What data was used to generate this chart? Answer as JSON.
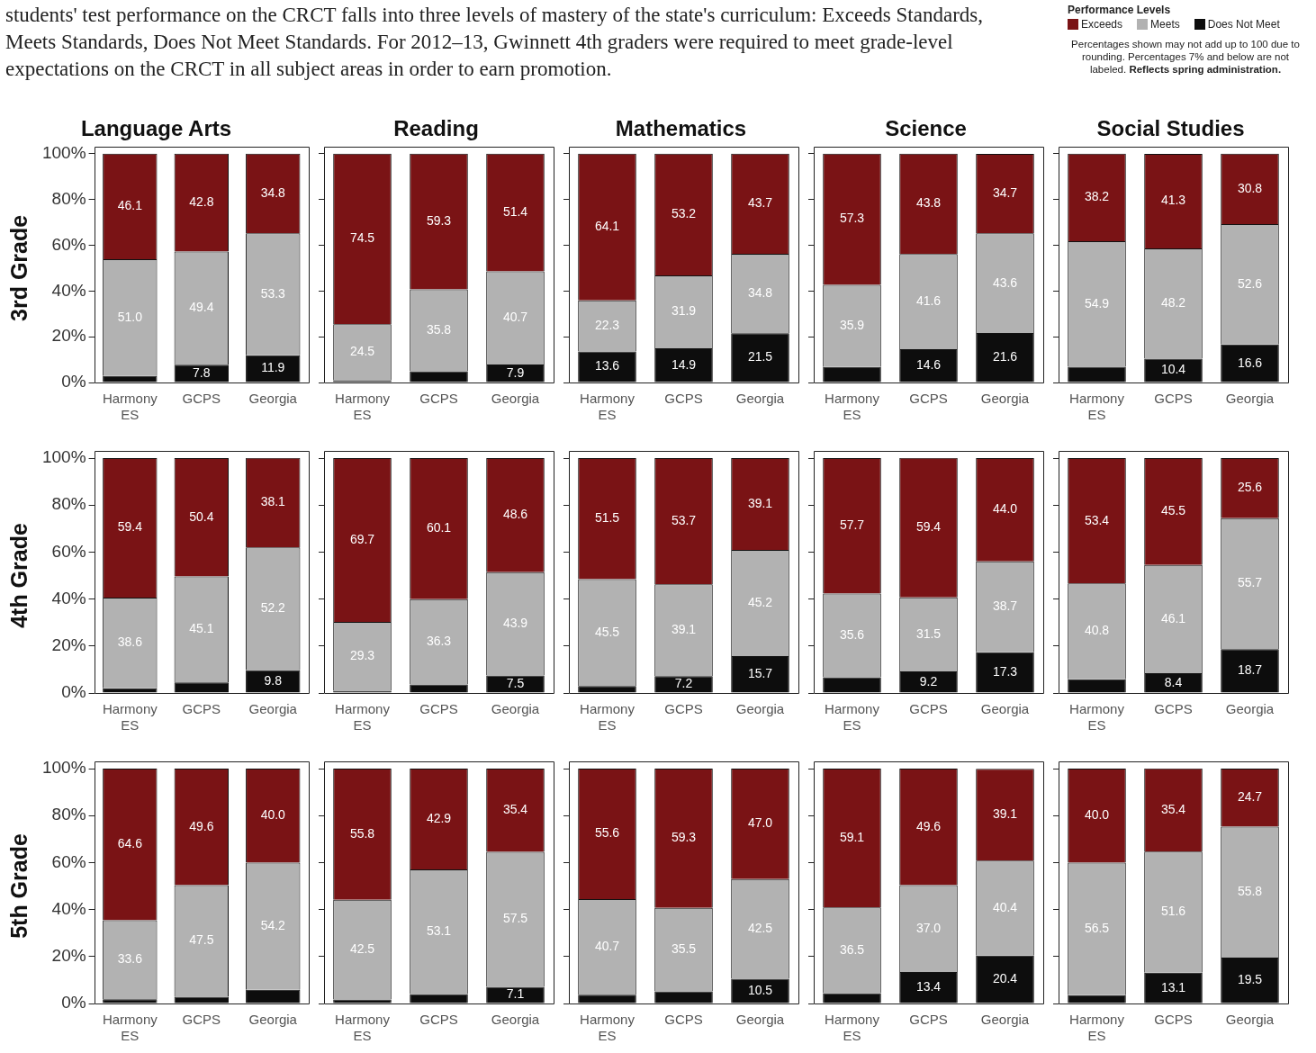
{
  "chart_data": [
    {
      "type": "bar",
      "stacked": true,
      "title": "Language Arts",
      "ylabel": "3rd Grade",
      "legend": "top right",
      "legend_title": "Performance Levels",
      "annotations": [
        "students' test performance on the CRCT falls into three levels of mastery of the state's curriculum: Exceeds Standards, Meets Standards, Does Not Meet Standards. For 2012–13, Gwinnett 4th graders were required to meet grade-level expectations on the CRCT in all subject areas in order to earn promotion.",
        "Percentages shown may not add up to 100 due to rounding. Percentages 7% and below are not labeled.",
        "Reflects spring administration."
      ],
      "categories": [
        "Harmony ES",
        "GCPS",
        "Georgia"
      ],
      "ylim": [
        0,
        100
      ],
      "yticks": [
        {
          "value": 0,
          "label": "0%"
        },
        {
          "value": 20,
          "label": "20%"
        },
        {
          "value": 40,
          "label": "40%"
        },
        {
          "value": 60,
          "label": "60%"
        },
        {
          "value": 80,
          "label": "80%"
        },
        {
          "value": 100,
          "label": "100%"
        }
      ],
      "series": [
        {
          "name": "Does Not Meet",
          "color": "#0d0d0d",
          "values": [
            2.9,
            7.8,
            11.9
          ],
          "value_labels": [
            null,
            "7.8",
            "11.9"
          ]
        },
        {
          "name": "Meets",
          "color": "#b2b2b2",
          "values": [
            51.0,
            49.4,
            53.3
          ],
          "value_labels": [
            "51.0",
            "49.4",
            "53.3"
          ]
        },
        {
          "name": "Exceeds",
          "color": "#7a1315",
          "values": [
            46.1,
            42.8,
            34.8
          ],
          "value_labels": [
            "46.1",
            "42.8",
            "34.8"
          ]
        }
      ]
    },
    {
      "type": "bar",
      "stacked": true,
      "title": "Reading",
      "tick_labels": "x",
      "categories": [
        "Harmony ES",
        "GCPS",
        "Georgia"
      ],
      "ylim": [
        0,
        100
      ],
      "yticks": [
        0,
        20,
        40,
        60,
        80,
        100
      ],
      "series": [
        {
          "color": "#0d0d0d",
          "values": [
            1.0,
            4.9,
            7.9
          ],
          "value_labels": [
            null,
            null,
            "7.9"
          ]
        },
        {
          "color": "#b2b2b2",
          "values": [
            24.5,
            35.8,
            40.7
          ],
          "value_labels": [
            "24.5",
            "35.8",
            "40.7"
          ]
        },
        {
          "color": "#7a1315",
          "values": [
            74.5,
            59.3,
            51.4
          ],
          "value_labels": [
            "74.5",
            "59.3",
            "51.4"
          ]
        }
      ]
    },
    {
      "type": "bar",
      "stacked": true,
      "title": "Mathematics",
      "tick_labels": "x",
      "categories": [
        "Harmony ES",
        "GCPS",
        "Georgia"
      ],
      "ylim": [
        0,
        100
      ],
      "yticks": [
        0,
        20,
        40,
        60,
        80,
        100
      ],
      "series": [
        {
          "color": "#0d0d0d",
          "values": [
            13.6,
            14.9,
            21.5
          ],
          "value_labels": [
            "13.6",
            "14.9",
            "21.5"
          ]
        },
        {
          "color": "#b2b2b2",
          "values": [
            22.3,
            31.9,
            34.8
          ],
          "value_labels": [
            "22.3",
            "31.9",
            "34.8"
          ]
        },
        {
          "color": "#7a1315",
          "values": [
            64.1,
            53.2,
            43.7
          ],
          "value_labels": [
            "64.1",
            "53.2",
            "43.7"
          ]
        }
      ]
    },
    {
      "type": "bar",
      "stacked": true,
      "title": "Science",
      "tick_labels": "x",
      "categories": [
        "Harmony ES",
        "GCPS",
        "Georgia"
      ],
      "ylim": [
        0,
        100
      ],
      "yticks": [
        0,
        20,
        40,
        60,
        80,
        100
      ],
      "series": [
        {
          "color": "#0d0d0d",
          "values": [
            6.8,
            14.6,
            21.6
          ],
          "value_labels": [
            null,
            "14.6",
            "21.6"
          ]
        },
        {
          "color": "#b2b2b2",
          "values": [
            35.9,
            41.6,
            43.6
          ],
          "value_labels": [
            "35.9",
            "41.6",
            "43.6"
          ]
        },
        {
          "color": "#7a1315",
          "values": [
            57.3,
            43.8,
            34.7
          ],
          "value_labels": [
            "57.3",
            "43.8",
            "34.7"
          ]
        }
      ]
    },
    {
      "type": "bar",
      "stacked": true,
      "title": "Social Studies",
      "tick_labels": "x",
      "categories": [
        "Harmony ES",
        "GCPS",
        "Georgia"
      ],
      "ylim": [
        0,
        100
      ],
      "yticks": [
        0,
        20,
        40,
        60,
        80,
        100
      ],
      "series": [
        {
          "color": "#0d0d0d",
          "values": [
            6.9,
            10.4,
            16.6
          ],
          "value_labels": [
            null,
            "10.4",
            "16.6"
          ]
        },
        {
          "color": "#b2b2b2",
          "values": [
            54.9,
            48.2,
            52.6
          ],
          "value_labels": [
            "54.9",
            "48.2",
            "52.6"
          ]
        },
        {
          "color": "#7a1315",
          "values": [
            38.2,
            41.3,
            30.8
          ],
          "value_labels": [
            "38.2",
            "41.3",
            "30.8"
          ]
        }
      ]
    },
    {
      "type": "bar",
      "stacked": true,
      "ylabel": "4th Grade",
      "categories": [
        "Harmony ES",
        "GCPS",
        "Georgia"
      ],
      "ylim": [
        0,
        100
      ],
      "yticks": [
        {
          "value": 0,
          "label": "0%"
        },
        {
          "value": 20,
          "label": "20%"
        },
        {
          "value": 40,
          "label": "40%"
        },
        {
          "value": 60,
          "label": "60%"
        },
        {
          "value": 80,
          "label": "80%"
        },
        {
          "value": 100,
          "label": "100%"
        }
      ],
      "series": [
        {
          "color": "#0d0d0d",
          "values": [
            2.0,
            4.5,
            9.8
          ],
          "value_labels": [
            null,
            null,
            "9.8"
          ]
        },
        {
          "color": "#b2b2b2",
          "values": [
            38.6,
            45.1,
            52.2
          ],
          "value_labels": [
            "38.6",
            "45.1",
            "52.2"
          ]
        },
        {
          "color": "#7a1315",
          "values": [
            59.4,
            50.4,
            38.1
          ],
          "value_labels": [
            "59.4",
            "50.4",
            "38.1"
          ]
        }
      ]
    },
    {
      "type": "bar",
      "stacked": true,
      "tick_labels": "x",
      "categories": [
        "Harmony ES",
        "GCPS",
        "Georgia"
      ],
      "ylim": [
        0,
        100
      ],
      "yticks": [
        0,
        20,
        40,
        60,
        80,
        100
      ],
      "series": [
        {
          "color": "#0d0d0d",
          "values": [
            1.0,
            3.6,
            7.5
          ],
          "value_labels": [
            null,
            null,
            "7.5"
          ]
        },
        {
          "color": "#b2b2b2",
          "values": [
            29.3,
            36.3,
            43.9
          ],
          "value_labels": [
            "29.3",
            "36.3",
            "43.9"
          ]
        },
        {
          "color": "#7a1315",
          "values": [
            69.7,
            60.1,
            48.6
          ],
          "value_labels": [
            "69.7",
            "60.1",
            "48.6"
          ]
        }
      ]
    },
    {
      "type": "bar",
      "stacked": true,
      "tick_labels": "x",
      "categories": [
        "Harmony ES",
        "GCPS",
        "Georgia"
      ],
      "ylim": [
        0,
        100
      ],
      "yticks": [
        0,
        20,
        40,
        60,
        80,
        100
      ],
      "series": [
        {
          "color": "#0d0d0d",
          "values": [
            3.0,
            7.2,
            15.7
          ],
          "value_labels": [
            null,
            "7.2",
            "15.7"
          ]
        },
        {
          "color": "#b2b2b2",
          "values": [
            45.5,
            39.1,
            45.2
          ],
          "value_labels": [
            "45.5",
            "39.1",
            "45.2"
          ]
        },
        {
          "color": "#7a1315",
          "values": [
            51.5,
            53.7,
            39.1
          ],
          "value_labels": [
            "51.5",
            "53.7",
            "39.1"
          ]
        }
      ]
    },
    {
      "type": "bar",
      "stacked": true,
      "tick_labels": "x",
      "categories": [
        "Harmony ES",
        "GCPS",
        "Georgia"
      ],
      "ylim": [
        0,
        100
      ],
      "yticks": [
        0,
        20,
        40,
        60,
        80,
        100
      ],
      "series": [
        {
          "color": "#0d0d0d",
          "values": [
            6.7,
            9.2,
            17.3
          ],
          "value_labels": [
            null,
            "9.2",
            "17.3"
          ]
        },
        {
          "color": "#b2b2b2",
          "values": [
            35.6,
            31.5,
            38.7
          ],
          "value_labels": [
            "35.6",
            "31.5",
            "38.7"
          ]
        },
        {
          "color": "#7a1315",
          "values": [
            57.7,
            59.4,
            44.0
          ],
          "value_labels": [
            "57.7",
            "59.4",
            "44.0"
          ]
        }
      ]
    },
    {
      "type": "bar",
      "stacked": true,
      "tick_labels": "x",
      "categories": [
        "Harmony ES",
        "GCPS",
        "Georgia"
      ],
      "ylim": [
        0,
        100
      ],
      "yticks": [
        0,
        20,
        40,
        60,
        80,
        100
      ],
      "series": [
        {
          "color": "#0d0d0d",
          "values": [
            5.8,
            8.4,
            18.7
          ],
          "value_labels": [
            null,
            "8.4",
            "18.7"
          ]
        },
        {
          "color": "#b2b2b2",
          "values": [
            40.8,
            46.1,
            55.7
          ],
          "value_labels": [
            "40.8",
            "46.1",
            "55.7"
          ]
        },
        {
          "color": "#7a1315",
          "values": [
            53.4,
            45.5,
            25.6
          ],
          "value_labels": [
            "53.4",
            "45.5",
            "25.6"
          ]
        }
      ]
    },
    {
      "type": "bar",
      "stacked": true,
      "ylabel": "5th Grade",
      "categories": [
        "Harmony ES",
        "GCPS",
        "Georgia"
      ],
      "ylim": [
        0,
        100
      ],
      "yticks": [
        {
          "value": 0,
          "label": "0%"
        },
        {
          "value": 20,
          "label": "20%"
        },
        {
          "value": 40,
          "label": "40%"
        },
        {
          "value": 60,
          "label": "60%"
        },
        {
          "value": 80,
          "label": "80%"
        },
        {
          "value": 100,
          "label": "100%"
        }
      ],
      "series": [
        {
          "color": "#0d0d0d",
          "values": [
            1.8,
            2.9,
            5.8
          ],
          "value_labels": [
            null,
            null,
            null
          ]
        },
        {
          "color": "#b2b2b2",
          "values": [
            33.6,
            47.5,
            54.2
          ],
          "value_labels": [
            "33.6",
            "47.5",
            "54.2"
          ]
        },
        {
          "color": "#7a1315",
          "values": [
            64.6,
            49.6,
            40.0
          ],
          "value_labels": [
            "64.6",
            "49.6",
            "40.0"
          ]
        }
      ]
    },
    {
      "type": "bar",
      "stacked": true,
      "tick_labels": "x",
      "categories": [
        "Harmony ES",
        "GCPS",
        "Georgia"
      ],
      "ylim": [
        0,
        100
      ],
      "yticks": [
        0,
        20,
        40,
        60,
        80,
        100
      ],
      "series": [
        {
          "color": "#0d0d0d",
          "values": [
            1.7,
            4.0,
            7.1
          ],
          "value_labels": [
            null,
            null,
            "7.1"
          ]
        },
        {
          "color": "#b2b2b2",
          "values": [
            42.5,
            53.1,
            57.5
          ],
          "value_labels": [
            "42.5",
            "53.1",
            "57.5"
          ]
        },
        {
          "color": "#7a1315",
          "values": [
            55.8,
            42.9,
            35.4
          ],
          "value_labels": [
            "55.8",
            "42.9",
            "35.4"
          ]
        }
      ]
    },
    {
      "type": "bar",
      "stacked": true,
      "tick_labels": "x",
      "categories": [
        "Harmony ES",
        "GCPS",
        "Georgia"
      ],
      "ylim": [
        0,
        100
      ],
      "yticks": [
        0,
        20,
        40,
        60,
        80,
        100
      ],
      "series": [
        {
          "color": "#0d0d0d",
          "values": [
            3.7,
            5.2,
            10.5
          ],
          "value_labels": [
            null,
            null,
            "10.5"
          ]
        },
        {
          "color": "#b2b2b2",
          "values": [
            40.7,
            35.5,
            42.5
          ],
          "value_labels": [
            "40.7",
            "35.5",
            "42.5"
          ]
        },
        {
          "color": "#7a1315",
          "values": [
            55.6,
            59.3,
            47.0
          ],
          "value_labels": [
            "55.6",
            "59.3",
            "47.0"
          ]
        }
      ]
    },
    {
      "type": "bar",
      "stacked": true,
      "tick_labels": "x",
      "categories": [
        "Harmony ES",
        "GCPS",
        "Georgia"
      ],
      "ylim": [
        0,
        100
      ],
      "yticks": [
        0,
        20,
        40,
        60,
        80,
        100
      ],
      "series": [
        {
          "color": "#0d0d0d",
          "values": [
            4.4,
            13.4,
            20.4
          ],
          "value_labels": [
            null,
            "13.4",
            "20.4"
          ]
        },
        {
          "color": "#b2b2b2",
          "values": [
            36.5,
            37.0,
            40.4
          ],
          "value_labels": [
            "36.5",
            "37.0",
            "40.4"
          ]
        },
        {
          "color": "#7a1315",
          "values": [
            59.1,
            49.6,
            39.1
          ],
          "value_labels": [
            "59.1",
            "49.6",
            "39.1"
          ]
        }
      ]
    },
    {
      "type": "bar",
      "stacked": true,
      "tick_labels": "x",
      "categories": [
        "Harmony ES",
        "GCPS",
        "Georgia"
      ],
      "ylim": [
        0,
        100
      ],
      "yticks": [
        0,
        20,
        40,
        60,
        80,
        100
      ],
      "series": [
        {
          "color": "#0d0d0d",
          "values": [
            3.5,
            13.1,
            19.5
          ],
          "value_labels": [
            null,
            "13.1",
            "19.5"
          ]
        },
        {
          "color": "#b2b2b2",
          "values": [
            56.5,
            51.6,
            55.8
          ],
          "value_labels": [
            "56.5",
            "51.6",
            "55.8"
          ]
        },
        {
          "color": "#7a1315",
          "values": [
            40.0,
            35.4,
            24.7
          ],
          "value_labels": [
            "40.0",
            "35.4",
            "24.7"
          ]
        }
      ]
    }
  ]
}
